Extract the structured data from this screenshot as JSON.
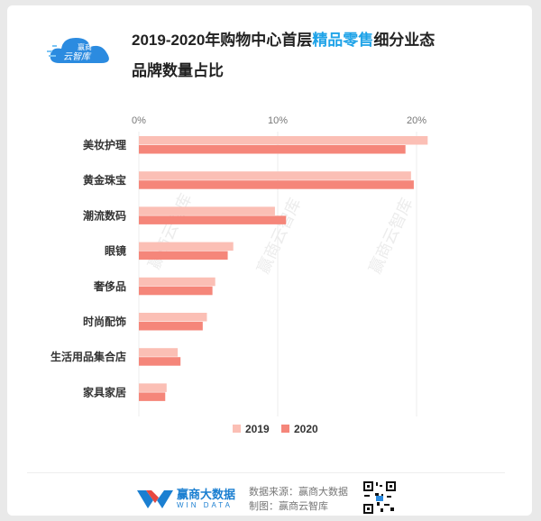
{
  "title": {
    "line1_prefix": "2019-2020年购物中心首层",
    "line1_highlight": "精品零售",
    "line1_suffix": "细分业态",
    "line2": "品牌数量占比"
  },
  "logo": {
    "text_top": "赢商",
    "text_bottom": "云智库"
  },
  "watermark": "赢商云智库",
  "footer": {
    "brand_cn": "赢商大数据",
    "brand_en": "WIN DATA",
    "source_line": "数据来源：赢商大数据",
    "maker_line": "制图：赢商云智库"
  },
  "colors": {
    "series_2019": "#fbbfb5",
    "series_2020": "#f5867a",
    "highlight": "#1fa3e8"
  },
  "chart_data": {
    "type": "bar",
    "orientation": "horizontal",
    "categories": [
      "美妆护理",
      "黄金珠宝",
      "潮流数码",
      "眼镜",
      "奢侈品",
      "时尚配饰",
      "生活用品集合店",
      "家具家居"
    ],
    "series": [
      {
        "name": "2019",
        "values": [
          20.8,
          19.6,
          9.8,
          6.8,
          5.5,
          4.9,
          2.8,
          2.0
        ]
      },
      {
        "name": "2020",
        "values": [
          19.2,
          19.8,
          10.6,
          6.4,
          5.3,
          4.6,
          3.0,
          1.9
        ]
      }
    ],
    "x_ticks": [
      "0%",
      "10%",
      "20%"
    ],
    "xlim": [
      0,
      22
    ],
    "xlabel": "",
    "ylabel": "",
    "legend_position": "bottom-center",
    "grid": true
  }
}
